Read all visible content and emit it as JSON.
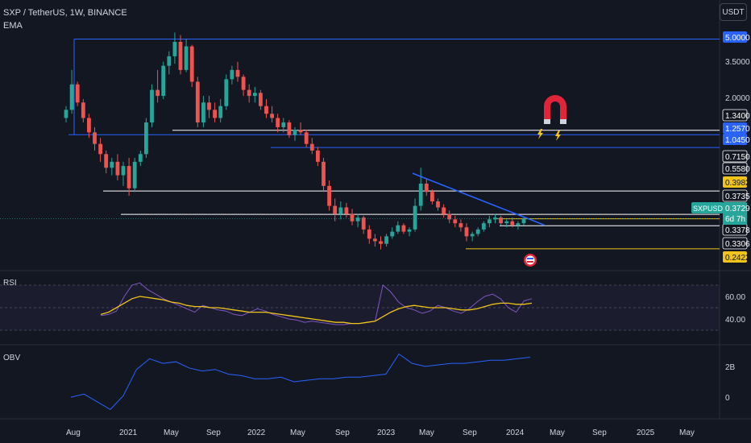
{
  "header": {
    "symbol_line": "SXP / TetherUS, 1W, BINANCE",
    "indicator": "EMA",
    "unit_button": "USDT"
  },
  "panes": {
    "rsi_label": "RSI",
    "obv_label": "OBV"
  },
  "colors": {
    "background": "#131722",
    "up": "#26a69a",
    "down": "#ef5350",
    "blue_line": "#2962ff",
    "white_line": "#ffffff",
    "yellow_line": "#f0c419",
    "rsi_line": "#7e57c2",
    "rsi_ma": "#f0c419",
    "obv_line": "#2962ff"
  },
  "icons": [
    "magnet-icon",
    "lightning-icon",
    "flag-icon"
  ],
  "chart_data": [
    {
      "type": "candlestick",
      "scale": "log",
      "x_labels": [
        "Aug",
        "2021",
        "May",
        "Sep",
        "2022",
        "May",
        "Sep",
        "2023",
        "May",
        "Sep",
        "2024",
        "May",
        "Sep",
        "2025",
        "May"
      ],
      "price_labels": [
        "5.0000",
        "3.5000",
        "2.0000",
        "1.3400",
        "1.2570",
        "1.0450",
        "0.7150",
        "0.5580",
        "0.3982",
        "0.3735",
        "0.3729",
        "0.3378",
        "0.3306",
        "0.2422"
      ],
      "highlighted_price_labels": [
        {
          "text": "5.0000",
          "color": "#2962ff"
        },
        {
          "text": "1.2570",
          "color": "#2962ff"
        },
        {
          "text": "1.0450",
          "color": "#2962ff"
        },
        {
          "text": "0.3982",
          "color": "#f0c419"
        },
        {
          "text": "0.2422",
          "color": "#f0c419"
        }
      ],
      "current": {
        "ticker": "SXPUSDT",
        "price": "0.3729",
        "countdown": "6d 7h"
      },
      "horizontal_levels": [
        {
          "price": 5.0,
          "color": "blue",
          "from": "Aug 2020"
        },
        {
          "price": 1.34,
          "color": "white",
          "from": "May 2021"
        },
        {
          "price": 1.257,
          "color": "blue",
          "from": "Aug 2020"
        },
        {
          "price": 1.045,
          "color": "blue",
          "from": "Mar 2022"
        },
        {
          "price": 0.558,
          "color": "white",
          "from": "Nov 2020"
        },
        {
          "price": 0.3982,
          "color": "white",
          "from": "Jan 2021"
        },
        {
          "price": 0.3735,
          "color": "yellow",
          "from": "Nov 2023"
        },
        {
          "price": 0.3378,
          "color": "white",
          "from": "Dec 2023"
        },
        {
          "price": 0.2422,
          "color": "yellow",
          "from": "Sep 2023"
        }
      ],
      "trendline": {
        "color": "blue",
        "from": [
          "Mar 2023",
          0.72
        ],
        "to": [
          "Mar 2024",
          0.34
        ]
      },
      "candles_approx": [
        [
          1.6,
          1.9,
          1.5,
          1.8
        ],
        [
          1.8,
          3.2,
          1.7,
          2.6
        ],
        [
          2.6,
          2.7,
          1.9,
          2.0
        ],
        [
          2.0,
          2.1,
          1.5,
          1.6
        ],
        [
          1.6,
          1.7,
          1.2,
          1.3
        ],
        [
          1.3,
          1.4,
          1.0,
          1.1
        ],
        [
          1.1,
          1.2,
          0.85,
          0.95
        ],
        [
          0.95,
          1.0,
          0.72,
          0.78
        ],
        [
          0.78,
          0.9,
          0.7,
          0.85
        ],
        [
          0.85,
          0.95,
          0.65,
          0.7
        ],
        [
          0.7,
          0.85,
          0.6,
          0.8
        ],
        [
          0.8,
          0.9,
          0.52,
          0.58
        ],
        [
          0.58,
          0.9,
          0.55,
          0.85
        ],
        [
          0.85,
          1.0,
          0.8,
          0.95
        ],
        [
          0.95,
          1.6,
          0.9,
          1.5
        ],
        [
          1.5,
          2.6,
          1.4,
          2.4
        ],
        [
          2.4,
          3.2,
          2.0,
          2.2
        ],
        [
          2.2,
          3.6,
          2.1,
          3.4
        ],
        [
          3.4,
          4.2,
          3.0,
          3.9
        ],
        [
          3.9,
          5.5,
          3.5,
          4.8
        ],
        [
          4.8,
          5.3,
          3.0,
          3.2
        ],
        [
          3.2,
          5.0,
          3.1,
          4.5
        ],
        [
          4.5,
          4.6,
          2.5,
          2.7
        ],
        [
          2.7,
          2.9,
          1.4,
          1.5
        ],
        [
          1.5,
          2.2,
          1.4,
          2.0
        ],
        [
          2.0,
          2.2,
          1.6,
          1.8
        ],
        [
          1.8,
          2.0,
          1.5,
          1.6
        ],
        [
          1.6,
          2.1,
          1.5,
          1.9
        ],
        [
          1.9,
          3.0,
          1.8,
          2.8
        ],
        [
          2.8,
          3.4,
          2.6,
          3.2
        ],
        [
          3.2,
          3.6,
          2.7,
          2.9
        ],
        [
          2.9,
          3.0,
          2.2,
          2.4
        ],
        [
          2.4,
          2.6,
          2.0,
          2.2
        ],
        [
          2.2,
          2.5,
          2.0,
          2.3
        ],
        [
          2.3,
          2.4,
          1.8,
          1.9
        ],
        [
          1.9,
          2.1,
          1.6,
          1.7
        ],
        [
          1.7,
          1.9,
          1.5,
          1.6
        ],
        [
          1.6,
          1.7,
          1.3,
          1.4
        ],
        [
          1.4,
          1.6,
          1.3,
          1.5
        ],
        [
          1.5,
          1.55,
          1.2,
          1.25
        ],
        [
          1.25,
          1.4,
          1.15,
          1.35
        ],
        [
          1.35,
          1.5,
          1.25,
          1.3
        ],
        [
          1.3,
          1.35,
          1.05,
          1.1
        ],
        [
          1.1,
          1.2,
          0.95,
          1.0
        ],
        [
          1.0,
          1.05,
          0.8,
          0.85
        ],
        [
          0.85,
          0.9,
          0.55,
          0.6
        ],
        [
          0.6,
          0.65,
          0.42,
          0.45
        ],
        [
          0.45,
          0.5,
          0.36,
          0.4
        ],
        [
          0.4,
          0.48,
          0.37,
          0.44
        ],
        [
          0.44,
          0.47,
          0.38,
          0.4
        ],
        [
          0.4,
          0.43,
          0.34,
          0.36
        ],
        [
          0.36,
          0.4,
          0.33,
          0.38
        ],
        [
          0.38,
          0.39,
          0.3,
          0.32
        ],
        [
          0.32,
          0.34,
          0.26,
          0.28
        ],
        [
          0.28,
          0.3,
          0.25,
          0.27
        ],
        [
          0.27,
          0.29,
          0.24,
          0.26
        ],
        [
          0.26,
          0.3,
          0.25,
          0.29
        ],
        [
          0.29,
          0.33,
          0.28,
          0.31
        ],
        [
          0.31,
          0.36,
          0.3,
          0.34
        ],
        [
          0.34,
          0.35,
          0.3,
          0.31
        ],
        [
          0.31,
          0.33,
          0.29,
          0.32
        ],
        [
          0.32,
          0.5,
          0.31,
          0.45
        ],
        [
          0.45,
          0.78,
          0.42,
          0.62
        ],
        [
          0.62,
          0.66,
          0.52,
          0.55
        ],
        [
          0.55,
          0.57,
          0.46,
          0.48
        ],
        [
          0.48,
          0.5,
          0.42,
          0.44
        ],
        [
          0.44,
          0.46,
          0.38,
          0.4
        ],
        [
          0.4,
          0.42,
          0.35,
          0.37
        ],
        [
          0.37,
          0.39,
          0.33,
          0.35
        ],
        [
          0.35,
          0.37,
          0.31,
          0.33
        ],
        [
          0.33,
          0.35,
          0.27,
          0.29
        ],
        [
          0.29,
          0.31,
          0.27,
          0.3
        ],
        [
          0.3,
          0.33,
          0.29,
          0.32
        ],
        [
          0.32,
          0.36,
          0.31,
          0.35
        ],
        [
          0.35,
          0.39,
          0.33,
          0.37
        ],
        [
          0.37,
          0.4,
          0.35,
          0.38
        ],
        [
          0.38,
          0.39,
          0.34,
          0.35
        ],
        [
          0.35,
          0.37,
          0.33,
          0.36
        ],
        [
          0.36,
          0.38,
          0.33,
          0.34
        ],
        [
          0.34,
          0.36,
          0.32,
          0.35
        ],
        [
          0.35,
          0.38,
          0.34,
          0.3729
        ]
      ]
    },
    {
      "type": "line",
      "name": "RSI",
      "tick_labels": [
        "60.00",
        "40.00"
      ],
      "bands": [
        70,
        50,
        30
      ],
      "series": [
        {
          "name": "RSI",
          "values": [
            43,
            44,
            47,
            60,
            70,
            72,
            66,
            62,
            58,
            55,
            52,
            49,
            46,
            52,
            50,
            48,
            47,
            44,
            43,
            46,
            49,
            47,
            44,
            42,
            40,
            39,
            37,
            38,
            37,
            36,
            35,
            35,
            36,
            36,
            37,
            38,
            70,
            64,
            55,
            50,
            48,
            45,
            47,
            52,
            50,
            47,
            45,
            49,
            55,
            60,
            62,
            58,
            50,
            46,
            56,
            58
          ]
        },
        {
          "name": "MA",
          "values": [
            44,
            46,
            50,
            54,
            58,
            60,
            59,
            58,
            57,
            55,
            54,
            52,
            51,
            51,
            50,
            50,
            49,
            48,
            47,
            46,
            46,
            46,
            45,
            44,
            43,
            42,
            41,
            40,
            39,
            38,
            37,
            37,
            36,
            36,
            37,
            38,
            42,
            46,
            49,
            51,
            52,
            51,
            50,
            50,
            50,
            49,
            48,
            48,
            49,
            51,
            53,
            54,
            54,
            53,
            53,
            54
          ]
        }
      ]
    },
    {
      "type": "line",
      "name": "OBV",
      "tick_labels": [
        "2B",
        "0"
      ],
      "series": [
        {
          "name": "OBV",
          "values": [
            0.0,
            0.2,
            -0.3,
            -0.8,
            0.1,
            1.8,
            2.5,
            2.2,
            2.3,
            1.9,
            1.7,
            1.8,
            1.5,
            1.4,
            1.2,
            1.2,
            1.3,
            1.0,
            1.1,
            1.2,
            1.2,
            1.3,
            1.3,
            1.4,
            1.5,
            2.8,
            2.2,
            2.0,
            2.1,
            2.2,
            2.2,
            2.3,
            2.4,
            2.4,
            2.5,
            2.6
          ]
        }
      ]
    }
  ]
}
